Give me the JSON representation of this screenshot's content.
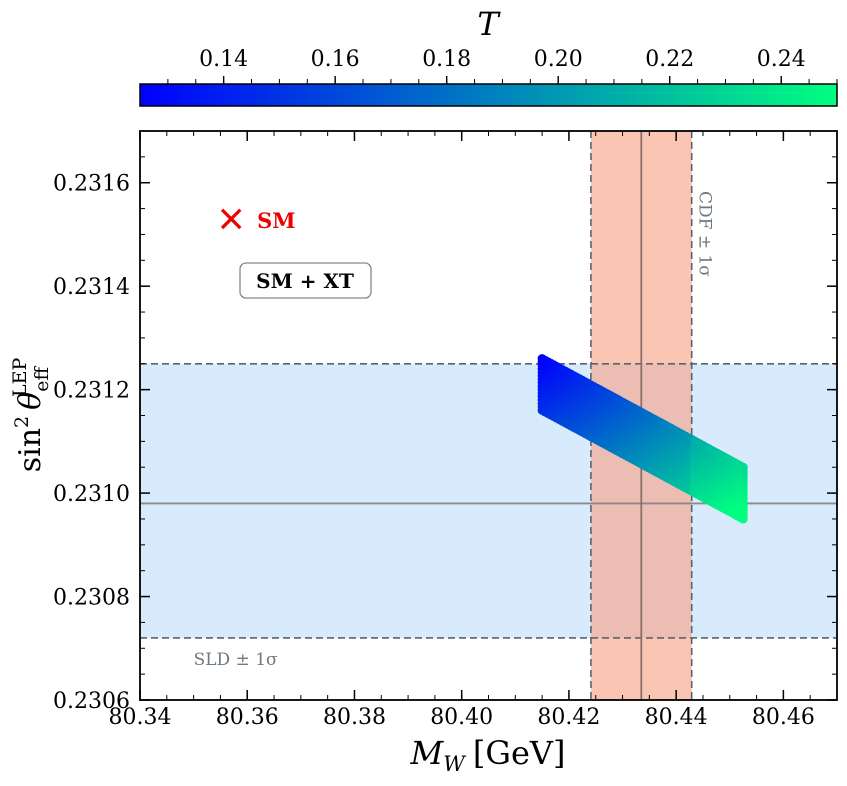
{
  "chart_data": {
    "type": "scatter",
    "xlabel": {
      "symbol": "M",
      "sub": "W",
      "unit": "[GeV]"
    },
    "ylabel": {
      "prefix": "sin",
      "sup": "2",
      "symbol": "θ",
      "sub": "eff",
      "sup2": "LEP"
    },
    "xlim": [
      80.34,
      80.47
    ],
    "ylim": [
      0.2306,
      0.2317
    ],
    "xticks": [
      "80.34",
      "80.36",
      "80.38",
      "80.40",
      "80.42",
      "80.44",
      "80.46"
    ],
    "yticks": [
      "0.2306",
      "0.2308",
      "0.2310",
      "0.2312",
      "0.2314",
      "0.2316"
    ],
    "colorbar": {
      "label": "T",
      "range": [
        0.125,
        0.25
      ],
      "ticks": [
        "0.14",
        "0.16",
        "0.18",
        "0.20",
        "0.22",
        "0.24"
      ],
      "colors": [
        "#0000ff",
        "#00ff80"
      ]
    },
    "cdf_band": {
      "label": "CDF ± 1σ",
      "center": 80.4335,
      "low": 80.4241,
      "high": 80.4429,
      "color": "#f9a184"
    },
    "sld_band": {
      "label": "SLD ± 1σ",
      "center": 0.23098,
      "low": 0.23072,
      "high": 0.23125,
      "color": "#d7ebfd"
    },
    "sm_point": {
      "label": "SM",
      "x": 80.357,
      "y": 0.23153,
      "color": "#ee0000"
    },
    "model_label": "SM + XT",
    "scan_region": {
      "x_range": [
        80.415,
        80.4525
      ],
      "top_edge": [
        [
          80.415,
          0.23126
        ],
        [
          80.4525,
          0.23105
        ]
      ],
      "bottom_edge": [
        [
          80.415,
          0.23116
        ],
        [
          80.4525,
          0.23095
        ]
      ],
      "T_at_x_min": 0.125,
      "T_at_x_max": 0.25
    }
  }
}
